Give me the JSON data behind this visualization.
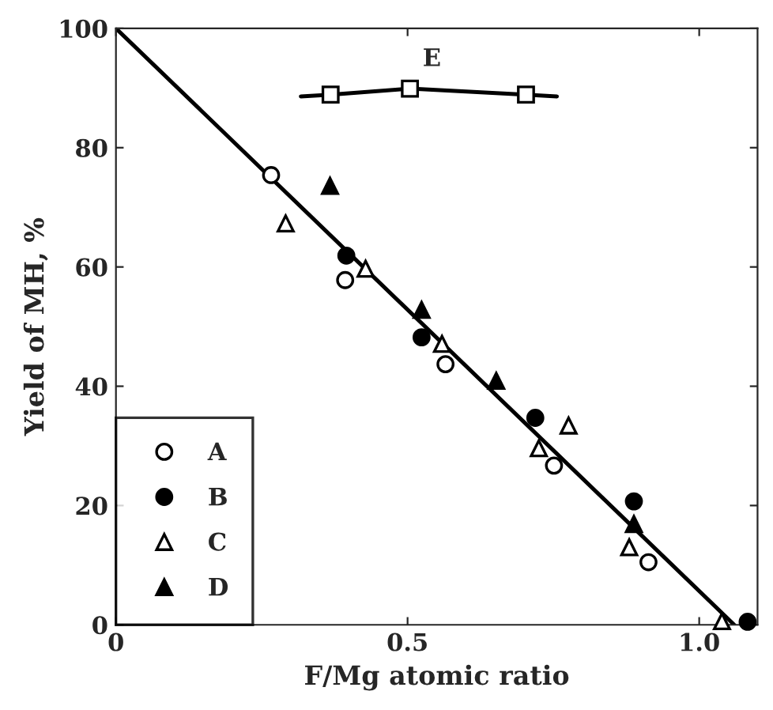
{
  "chart_data": {
    "type": "scatter",
    "xlabel": "F/Mg atomic ratio",
    "ylabel": "Yield of MH, %",
    "xlim": [
      0,
      1.1
    ],
    "ylim": [
      0,
      100
    ],
    "xticks": [
      0,
      {
        "value": 0.5,
        "label": "0.5"
      },
      {
        "value": 1.0,
        "label": "1.0"
      }
    ],
    "yticks": [
      0,
      20,
      40,
      60,
      80,
      100
    ],
    "legend": "bottom left",
    "grid": false,
    "annotations": [
      {
        "text": "E",
        "x": 0.504,
        "y": 89.9
      }
    ],
    "series": [
      {
        "name": "A",
        "color": "#ffffff",
        "marker": "circle",
        "x": [
          0.266,
          0.393,
          0.565,
          0.751,
          0.913
        ],
        "values": [
          75.4,
          57.8,
          43.7,
          26.7,
          10.5
        ]
      },
      {
        "name": "B",
        "color": "#000000",
        "marker": "circle",
        "x": [
          0.395,
          0.524,
          0.719,
          0.888,
          1.083
        ],
        "values": [
          61.9,
          48.2,
          34.7,
          20.7,
          0.5
        ]
      },
      {
        "name": "C",
        "color": "#ffffff",
        "marker": "triangle",
        "x": [
          0.291,
          0.428,
          0.559,
          0.725,
          0.776,
          0.88,
          1.039
        ],
        "values": [
          67.3,
          59.7,
          47.1,
          29.6,
          33.4,
          13.0,
          0.6
        ]
      },
      {
        "name": "D",
        "color": "#000000",
        "marker": "triangle",
        "x": [
          0.367,
          0.524,
          0.652,
          0.888
        ],
        "values": [
          73.6,
          52.8,
          40.9,
          16.9
        ]
      },
      {
        "type": "line",
        "color": "#000000",
        "marker": "none",
        "x": [
          0.317,
          0.368,
          0.504,
          0.703,
          0.756
        ],
        "values": [
          88.6,
          88.9,
          89.9,
          88.9,
          88.6
        ]
      },
      {
        "color": "#ffffff",
        "marker": "square",
        "x": [
          0.368,
          0.504,
          0.703
        ],
        "values": [
          88.9,
          89.9,
          88.9
        ]
      },
      {
        "type": "line",
        "color": "#000000",
        "marker": "none",
        "x": [
          0,
          1.06
        ],
        "values": [
          100,
          0
        ]
      }
    ]
  }
}
